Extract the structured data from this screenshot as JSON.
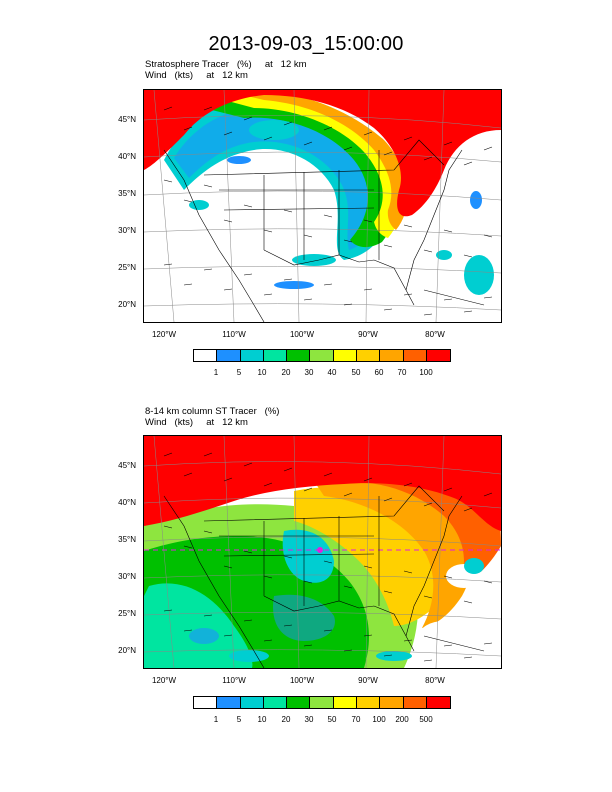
{
  "title": "2013-09-03_15:00:00",
  "colors": [
    "#ffffff",
    "#1e90ff",
    "#00ced1",
    "#00e5a0",
    "#00c000",
    "#8ee53f",
    "#ffff00",
    "#ffd000",
    "#ffa500",
    "#ff6000",
    "#ff0000"
  ],
  "panels": [
    {
      "title_line1": "Stratosphere Tracer   (%)     at   12 km",
      "title_line2": "Wind   (kts)     at   12 km",
      "lat_labels": [
        "45°N",
        "40°N",
        "35°N",
        "30°N",
        "25°N",
        "20°N"
      ],
      "lon_labels": [
        "120°W",
        "110°W",
        "100°W",
        "90°W",
        "80°W"
      ],
      "colorbar_labels": [
        "1",
        "5",
        "10",
        "20",
        "30",
        "40",
        "50",
        "60",
        "70",
        "100"
      ]
    },
    {
      "title_line1": "8-14 km column ST Tracer   (%)",
      "title_line2": "Wind   (kts)     at   12 km",
      "lat_labels": [
        "45°N",
        "40°N",
        "35°N",
        "30°N",
        "25°N",
        "20°N"
      ],
      "lon_labels": [
        "120°W",
        "110°W",
        "100°W",
        "90°W",
        "80°W"
      ],
      "colorbar_labels": [
        "1",
        "5",
        "10",
        "20",
        "30",
        "50",
        "70",
        "100",
        "200",
        "500"
      ]
    }
  ]
}
